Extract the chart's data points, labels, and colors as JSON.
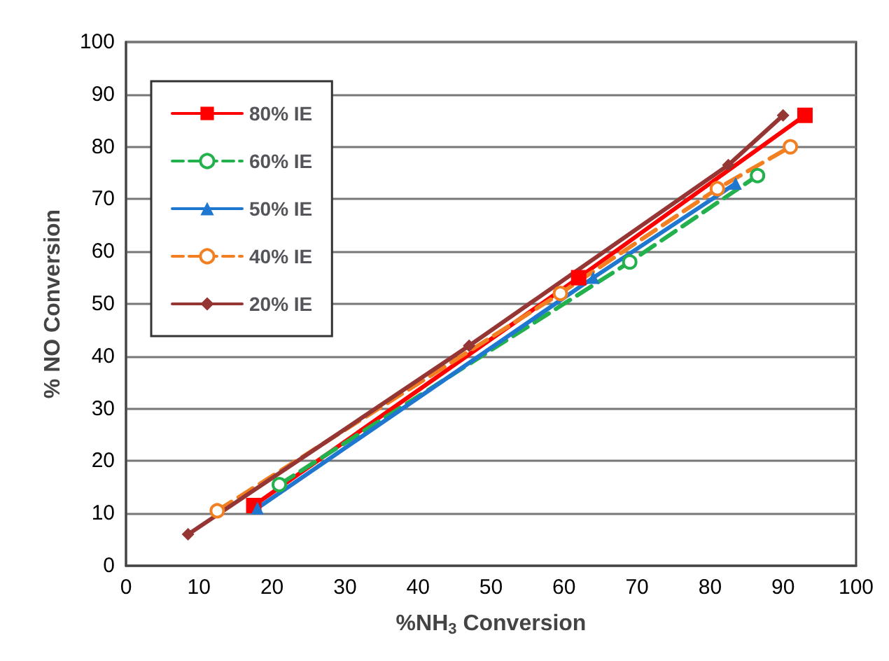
{
  "chart_data": {
    "type": "line",
    "xlabel": "%NH$_{3}$ Conversion",
    "ylabel": "% NO Conversion",
    "xlim": [
      0,
      100
    ],
    "xticks": [
      0,
      10,
      20,
      30,
      40,
      50,
      60,
      70,
      80,
      90,
      100
    ],
    "ylim": [
      0,
      100
    ],
    "yticks": [
      0,
      10,
      20,
      30,
      40,
      50,
      60,
      70,
      80,
      90,
      100
    ],
    "grid": "y",
    "legend": "top left",
    "series": [
      {
        "name": "80% IE",
        "color": "#ff0000",
        "marker": "square",
        "line_style": "solid",
        "x": [
          17.5,
          62,
          93
        ],
        "values": [
          11.5,
          55,
          86
        ]
      },
      {
        "name": "60% IE",
        "color": "#22b14c",
        "marker": "circle",
        "line_style": "dashed",
        "x": [
          21,
          69,
          86.5
        ],
        "values": [
          15.5,
          58,
          74.5
        ]
      },
      {
        "name": "50% IE",
        "color": "#1f77d0",
        "marker": "triangle",
        "line_style": "solid",
        "x": [
          18,
          64,
          83.5
        ],
        "values": [
          11,
          55,
          73
        ]
      },
      {
        "name": "40% IE",
        "color": "#f28022",
        "marker": "circle",
        "line_style": "dashed",
        "x": [
          12.5,
          59.5,
          81,
          91
        ],
        "values": [
          10.5,
          52,
          72,
          80
        ]
      },
      {
        "name": "20% IE",
        "color": "#963634",
        "marker": "diamond",
        "line_style": "solid",
        "x": [
          8.5,
          47,
          82.5,
          90
        ],
        "values": [
          6,
          42,
          76.5,
          86
        ]
      }
    ]
  }
}
